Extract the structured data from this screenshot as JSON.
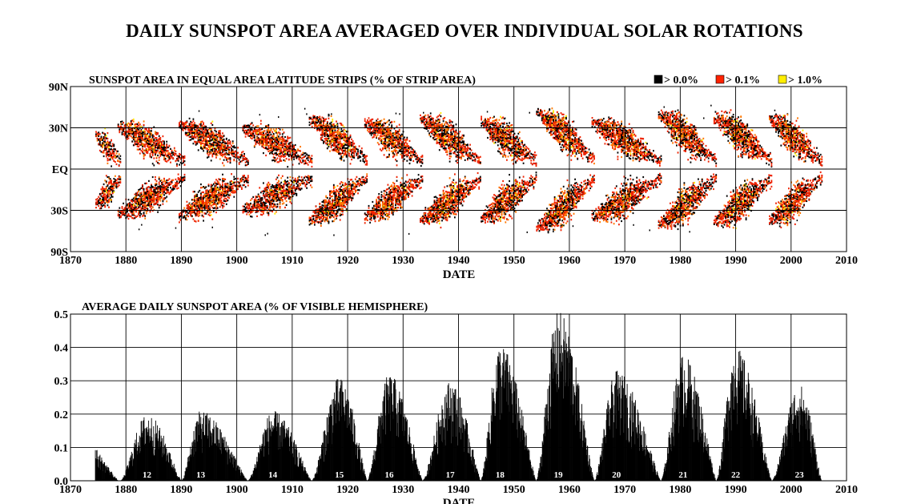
{
  "title": "DAILY SUNSPOT AREA AVERAGED OVER INDIVIDUAL SOLAR ROTATIONS",
  "chart_data": [
    {
      "type": "heatmap",
      "title": "SUNSPOT AREA IN EQUAL AREA LATITUDE STRIPS (% OF STRIP AREA)",
      "xlabel": "DATE",
      "ylabel": "",
      "xlim": [
        1870,
        2010
      ],
      "ylim": [
        "90S",
        "90N"
      ],
      "x_ticks": [
        "1870",
        "1880",
        "1890",
        "1900",
        "1910",
        "1920",
        "1930",
        "1940",
        "1950",
        "1960",
        "1970",
        "1980",
        "1990",
        "2000",
        "2010"
      ],
      "y_ticks": [
        "90N",
        "30N",
        "EQ",
        "30S",
        "90S"
      ],
      "grid": true,
      "legend_position": "top-right",
      "legend": [
        {
          "label": "> 0.0%",
          "color": "#000000"
        },
        {
          "label": "> 0.1%",
          "color": "#ff2200"
        },
        {
          "label": "> 1.0%",
          "color": "#ffee00"
        }
      ],
      "colors": {
        "low": "#000000",
        "mid": "#ee2200",
        "mid2": "#ff7700",
        "high": "#ffee00"
      },
      "cycles": [
        {
          "start": 1874.5,
          "end": 1879.0,
          "max_lat": 24,
          "intensity": 0.55
        },
        {
          "start": 1878.5,
          "end": 1890.5,
          "max_lat": 32,
          "intensity": 0.8
        },
        {
          "start": 1889.5,
          "end": 1902.0,
          "max_lat": 33,
          "intensity": 0.85
        },
        {
          "start": 1901.0,
          "end": 1913.5,
          "max_lat": 30,
          "intensity": 0.75
        },
        {
          "start": 1913.0,
          "end": 1923.5,
          "max_lat": 38,
          "intensity": 0.9
        },
        {
          "start": 1923.0,
          "end": 1933.5,
          "max_lat": 35,
          "intensity": 0.88
        },
        {
          "start": 1933.0,
          "end": 1944.0,
          "max_lat": 38,
          "intensity": 0.95
        },
        {
          "start": 1944.0,
          "end": 1954.0,
          "max_lat": 36,
          "intensity": 0.95
        },
        {
          "start": 1954.0,
          "end": 1964.5,
          "max_lat": 45,
          "intensity": 1.0
        },
        {
          "start": 1964.0,
          "end": 1976.5,
          "max_lat": 35,
          "intensity": 0.9
        },
        {
          "start": 1976.0,
          "end": 1986.5,
          "max_lat": 42,
          "intensity": 1.0
        },
        {
          "start": 1986.0,
          "end": 1996.5,
          "max_lat": 40,
          "intensity": 1.0
        },
        {
          "start": 1996.0,
          "end": 2005.5,
          "max_lat": 38,
          "intensity": 0.95
        }
      ]
    },
    {
      "type": "bar",
      "title": "AVERAGE DAILY SUNSPOT AREA (% OF VISIBLE HEMISPHERE)",
      "xlabel": "DATE",
      "ylabel": "",
      "xlim": [
        1870,
        2010
      ],
      "ylim": [
        0,
        0.5
      ],
      "x_ticks": [
        "1870",
        "1880",
        "1890",
        "1900",
        "1910",
        "1920",
        "1930",
        "1940",
        "1950",
        "1960",
        "1970",
        "1980",
        "1990",
        "2000",
        "2010"
      ],
      "y_ticks": [
        "0.0",
        "0.1",
        "0.2",
        "0.3",
        "0.4",
        "0.5"
      ],
      "grid": true,
      "cycles": [
        {
          "label": "",
          "min_year": 1874.5,
          "peak_year": 1874.5,
          "end_year": 1879.0,
          "peak_value": 0.1
        },
        {
          "label": "12",
          "min_year": 1879.0,
          "peak_year": 1883.8,
          "end_year": 1890.0,
          "peak_value": 0.2
        },
        {
          "label": "13",
          "min_year": 1890.0,
          "peak_year": 1893.5,
          "end_year": 1902.0,
          "peak_value": 0.21
        },
        {
          "label": "14",
          "min_year": 1902.0,
          "peak_year": 1906.5,
          "end_year": 1913.5,
          "peak_value": 0.21
        },
        {
          "label": "15",
          "min_year": 1913.5,
          "peak_year": 1918.5,
          "end_year": 1923.5,
          "peak_value": 0.31
        },
        {
          "label": "16",
          "min_year": 1923.5,
          "peak_year": 1927.5,
          "end_year": 1933.5,
          "peak_value": 0.32
        },
        {
          "label": "17",
          "min_year": 1933.5,
          "peak_year": 1938.5,
          "end_year": 1944.0,
          "peak_value": 0.3
        },
        {
          "label": "18",
          "min_year": 1944.0,
          "peak_year": 1947.5,
          "end_year": 1954.0,
          "peak_value": 0.41
        },
        {
          "label": "19",
          "min_year": 1954.0,
          "peak_year": 1958.0,
          "end_year": 1964.5,
          "peak_value": 0.51
        },
        {
          "label": "20",
          "min_year": 1964.5,
          "peak_year": 1968.5,
          "end_year": 1976.5,
          "peak_value": 0.33
        },
        {
          "label": "21",
          "min_year": 1976.5,
          "peak_year": 1980.5,
          "end_year": 1986.5,
          "peak_value": 0.38
        },
        {
          "label": "22",
          "min_year": 1986.5,
          "peak_year": 1990.0,
          "end_year": 1996.5,
          "peak_value": 0.4
        },
        {
          "label": "23",
          "min_year": 1996.5,
          "peak_year": 2001.5,
          "end_year": 2005.5,
          "peak_value": 0.29
        }
      ]
    }
  ]
}
